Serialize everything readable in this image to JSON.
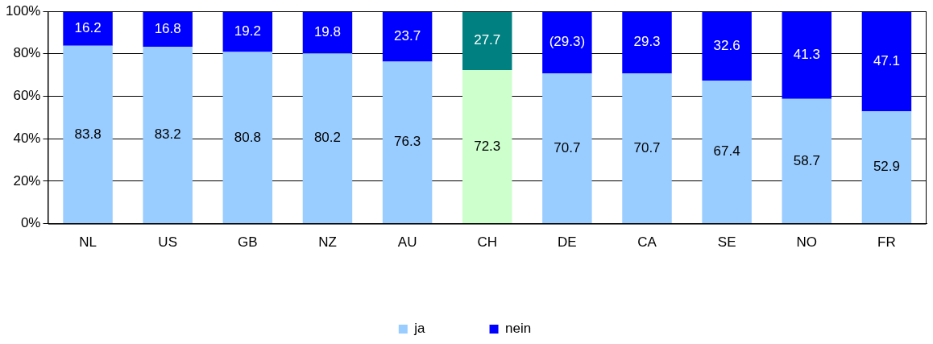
{
  "chart_data": {
    "type": "bar",
    "stacked": true,
    "categories": [
      "NL",
      "US",
      "GB",
      "NZ",
      "AU",
      "CH",
      "DE",
      "CA",
      "SE",
      "NO",
      "FR"
    ],
    "series": [
      {
        "name": "ja",
        "color": "#99ccff",
        "colors": [
          "#99ccff",
          "#99ccff",
          "#99ccff",
          "#99ccff",
          "#99ccff",
          "#ccffcc",
          "#99ccff",
          "#99ccff",
          "#99ccff",
          "#99ccff",
          "#99ccff"
        ],
        "values": [
          83.8,
          83.2,
          80.8,
          80.2,
          76.3,
          72.3,
          70.7,
          70.7,
          67.4,
          58.7,
          52.9
        ],
        "value_labels": [
          "83.8",
          "83.2",
          "80.8",
          "80.2",
          "76.3",
          "72.3",
          "70.7",
          "70.7",
          "67.4",
          "58.7",
          "52.9"
        ]
      },
      {
        "name": "nein",
        "color": "#0000ff",
        "colors": [
          "#0000ff",
          "#0000ff",
          "#0000ff",
          "#0000ff",
          "#0000ff",
          "#008080",
          "#0000ff",
          "#0000ff",
          "#0000ff",
          "#0000ff",
          "#0000ff"
        ],
        "values": [
          16.2,
          16.8,
          19.2,
          19.8,
          23.7,
          27.7,
          29.3,
          29.3,
          32.6,
          41.3,
          47.1
        ],
        "value_labels": [
          "16.2",
          "16.8",
          "19.2",
          "19.8",
          "23.7",
          "27.7",
          "(29.3)",
          "29.3",
          "32.6",
          "41.3",
          "47.1"
        ]
      }
    ],
    "ylim": [
      0,
      100
    ],
    "yticks": [
      {
        "value": 0,
        "label": "0%"
      },
      {
        "value": 20,
        "label": "20%"
      },
      {
        "value": 40,
        "label": "40%"
      },
      {
        "value": 60,
        "label": "60%"
      },
      {
        "value": 80,
        "label": "80%"
      },
      {
        "value": 100,
        "label": "100%"
      }
    ],
    "grid": "y",
    "legend": "bottom"
  }
}
